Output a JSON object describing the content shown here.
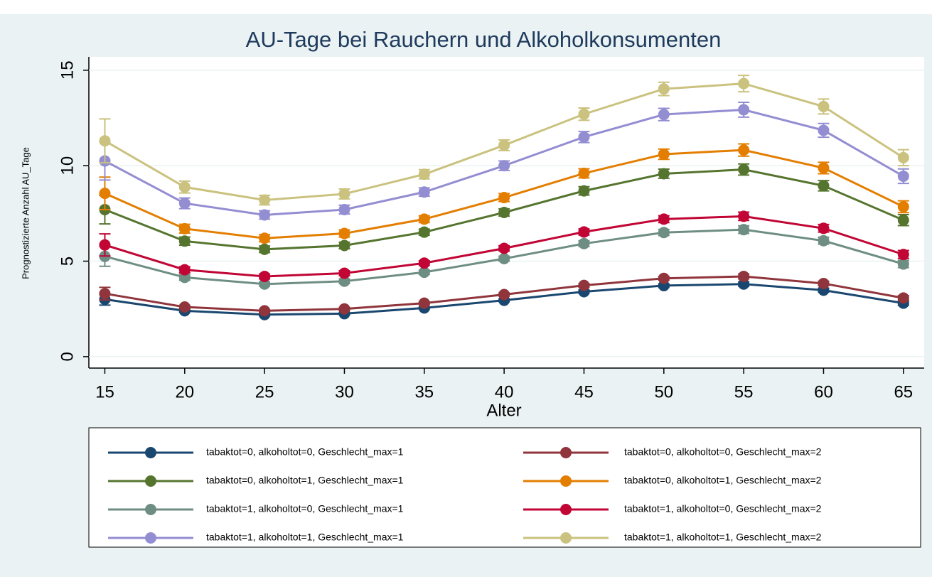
{
  "chart_data": {
    "type": "line",
    "title": "AU-Tage bei Rauchern und Alkoholkonsumenten",
    "x_label": "Alter",
    "y_label": "Prognostizierte Anzahl AU_Tage",
    "x": [
      15,
      20,
      25,
      30,
      35,
      40,
      45,
      50,
      55,
      60,
      65
    ],
    "xlim": [
      14,
      66.3
    ],
    "xticks": [
      15,
      20,
      25,
      30,
      35,
      40,
      45,
      50,
      55,
      60,
      65
    ],
    "ylim": [
      -0.6,
      15.7
    ],
    "yticks": [
      0,
      5,
      10,
      15
    ],
    "grid": true,
    "legend_position": "bottom",
    "series": [
      {
        "name": "tabaktot=0, alkoholtot=0, Geschlecht_max=1",
        "color": "#1a476f",
        "values": [
          3.0,
          2.4,
          2.2,
          2.25,
          2.55,
          2.95,
          3.4,
          3.72,
          3.8,
          3.48,
          2.8
        ],
        "errors": [
          0.3,
          0.08,
          0.07,
          0.07,
          0.06,
          0.07,
          0.09,
          0.09,
          0.11,
          0.1,
          0.11
        ]
      },
      {
        "name": "tabaktot=0, alkoholtot=0, Geschlecht_max=2",
        "color": "#90353b",
        "values": [
          3.3,
          2.6,
          2.4,
          2.5,
          2.8,
          3.25,
          3.73,
          4.1,
          4.2,
          3.83,
          3.07
        ],
        "errors": [
          0.33,
          0.09,
          0.07,
          0.08,
          0.07,
          0.08,
          0.09,
          0.1,
          0.13,
          0.12,
          0.12
        ]
      },
      {
        "name": "tabaktot=0, alkoholtot=1, Geschlecht_max=1",
        "color": "#55752f",
        "values": [
          7.7,
          6.05,
          5.62,
          5.82,
          6.52,
          7.55,
          8.68,
          9.58,
          9.8,
          8.95,
          7.15
        ],
        "errors": [
          0.75,
          0.21,
          0.17,
          0.17,
          0.16,
          0.19,
          0.22,
          0.24,
          0.29,
          0.27,
          0.29
        ]
      },
      {
        "name": "tabaktot=0, alkoholtot=1, Geschlecht_max=2",
        "color": "#e37e00",
        "values": [
          8.55,
          6.7,
          6.2,
          6.45,
          7.2,
          8.33,
          9.6,
          10.6,
          10.82,
          9.88,
          7.85
        ],
        "errors": [
          0.85,
          0.23,
          0.19,
          0.19,
          0.18,
          0.21,
          0.24,
          0.27,
          0.32,
          0.3,
          0.31
        ]
      },
      {
        "name": "tabaktot=1, alkoholtot=0, Geschlecht_max=1",
        "color": "#6e8e84",
        "values": [
          5.25,
          4.15,
          3.8,
          3.95,
          4.42,
          5.13,
          5.92,
          6.5,
          6.65,
          6.07,
          4.85
        ],
        "errors": [
          0.52,
          0.15,
          0.11,
          0.12,
          0.11,
          0.13,
          0.15,
          0.16,
          0.2,
          0.18,
          0.19
        ]
      },
      {
        "name": "tabaktot=1, alkoholtot=0, Geschlecht_max=2",
        "color": "#c10534",
        "values": [
          5.85,
          4.55,
          4.2,
          4.37,
          4.9,
          5.67,
          6.53,
          7.2,
          7.35,
          6.72,
          5.35
        ],
        "errors": [
          0.58,
          0.16,
          0.13,
          0.13,
          0.12,
          0.14,
          0.16,
          0.18,
          0.22,
          0.2,
          0.21
        ]
      },
      {
        "name": "tabaktot=1, alkoholtot=1, Geschlecht_max=1",
        "color": "#938dd2",
        "values": [
          10.25,
          8.03,
          7.42,
          7.7,
          8.62,
          10.0,
          11.5,
          12.68,
          12.93,
          11.85,
          9.45
        ],
        "errors": [
          1.0,
          0.28,
          0.22,
          0.23,
          0.22,
          0.25,
          0.29,
          0.32,
          0.39,
          0.36,
          0.38
        ]
      },
      {
        "name": "tabaktot=1, alkoholtot=1, Geschlecht_max=2",
        "color": "#cac27e",
        "values": [
          11.3,
          8.88,
          8.2,
          8.52,
          9.55,
          11.07,
          12.7,
          14.02,
          14.3,
          13.1,
          10.42
        ],
        "errors": [
          1.15,
          0.31,
          0.25,
          0.26,
          0.24,
          0.28,
          0.32,
          0.35,
          0.43,
          0.39,
          0.42
        ]
      }
    ]
  }
}
